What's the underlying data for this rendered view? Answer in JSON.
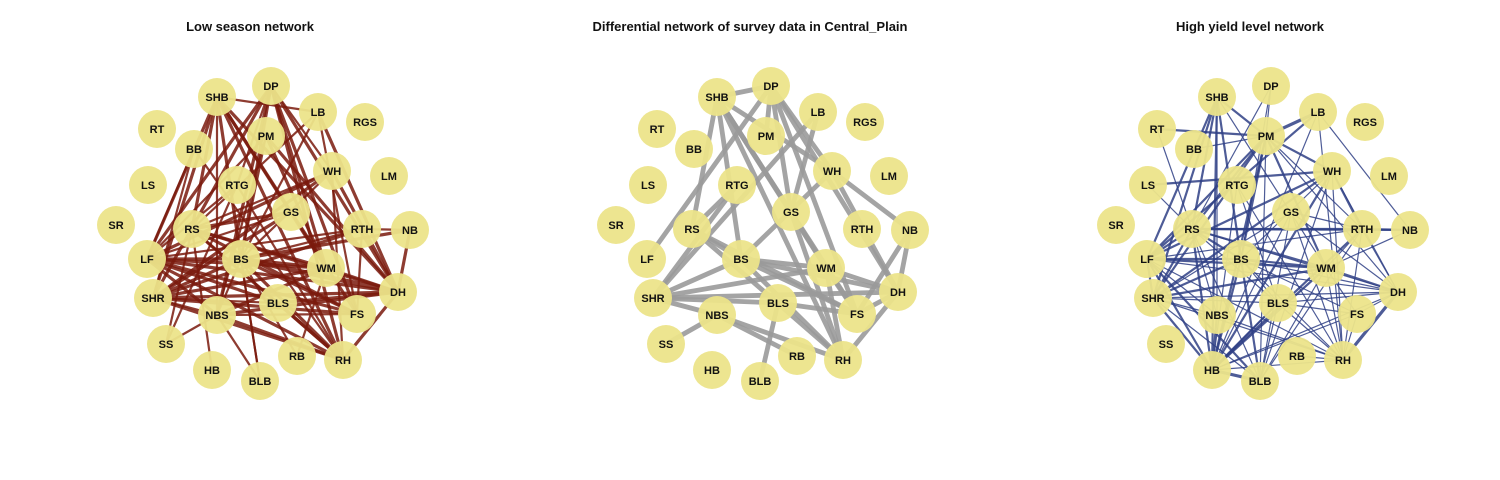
{
  "colors": {
    "node_fill": "#ece48a",
    "low_season_edge": "#7a1a0d",
    "differential_edge": "#9a9a9a",
    "high_yield_edge": "#2f3f85"
  },
  "nodes": [
    "SHB",
    "DP",
    "LB",
    "RGS",
    "RT",
    "PM",
    "BB",
    "WH",
    "LM",
    "LS",
    "RTG",
    "GS",
    "SR",
    "RS",
    "RTH",
    "NB",
    "LF",
    "BS",
    "WM",
    "DH",
    "SHR",
    "BLS",
    "FS",
    "NBS",
    "SS",
    "RB",
    "RH",
    "HB",
    "BLB"
  ],
  "panels": [
    {
      "title": "Low season network",
      "edge_color": "#7a1a0d",
      "edges": [
        [
          "SHB",
          "RS",
          3
        ],
        [
          "SHB",
          "BS",
          3
        ],
        [
          "SHB",
          "LF",
          3
        ],
        [
          "SHB",
          "SHR",
          3
        ],
        [
          "SHB",
          "WM",
          3
        ],
        [
          "SHB",
          "FS",
          3
        ],
        [
          "SHB",
          "RH",
          3
        ],
        [
          "SHB",
          "DH",
          3
        ],
        [
          "SHB",
          "NBS",
          2
        ],
        [
          "SHB",
          "LB",
          2
        ],
        [
          "DP",
          "LF",
          3
        ],
        [
          "DP",
          "BS",
          3
        ],
        [
          "DP",
          "WM",
          3
        ],
        [
          "DP",
          "RH",
          3
        ],
        [
          "DP",
          "DH",
          3
        ],
        [
          "DP",
          "FS",
          3
        ],
        [
          "DP",
          "NBS",
          3
        ],
        [
          "DP",
          "SHR",
          3
        ],
        [
          "DP",
          "WH",
          2
        ],
        [
          "DP",
          "RTG",
          2
        ],
        [
          "LB",
          "BS",
          2
        ],
        [
          "LB",
          "DH",
          3
        ],
        [
          "LB",
          "RS",
          2
        ],
        [
          "LB",
          "FS",
          2
        ],
        [
          "PM",
          "LF",
          2
        ],
        [
          "PM",
          "WM",
          3
        ],
        [
          "PM",
          "DH",
          3
        ],
        [
          "PM",
          "NBS",
          2
        ],
        [
          "PM",
          "BS",
          2
        ],
        [
          "BB",
          "SHR",
          2
        ],
        [
          "BB",
          "LF",
          2
        ],
        [
          "BB",
          "RH",
          2
        ],
        [
          "WH",
          "SHR",
          3
        ],
        [
          "WH",
          "LF",
          3
        ],
        [
          "WH",
          "RH",
          2
        ],
        [
          "WH",
          "BS",
          2
        ],
        [
          "WH",
          "RS",
          2
        ],
        [
          "WH",
          "DH",
          3
        ],
        [
          "RTG",
          "LF",
          2
        ],
        [
          "RTG",
          "SS",
          2
        ],
        [
          "RTG",
          "RH",
          2
        ],
        [
          "GS",
          "SHR",
          3
        ],
        [
          "GS",
          "LF",
          2
        ],
        [
          "GS",
          "RS",
          3
        ],
        [
          "RS",
          "DH",
          3
        ],
        [
          "RS",
          "RH",
          3
        ],
        [
          "RS",
          "FS",
          3
        ],
        [
          "RS",
          "SS",
          2
        ],
        [
          "RS",
          "HB",
          2
        ],
        [
          "RS",
          "WM",
          3
        ],
        [
          "RS",
          "BLS",
          2
        ],
        [
          "RTH",
          "SHR",
          3
        ],
        [
          "RTH",
          "LF",
          2
        ],
        [
          "RTH",
          "BS",
          2
        ],
        [
          "RTH",
          "FS",
          2
        ],
        [
          "NB",
          "DH",
          3
        ],
        [
          "NB",
          "BS",
          3
        ],
        [
          "NB",
          "RTH",
          2
        ],
        [
          "LF",
          "DH",
          3
        ],
        [
          "LF",
          "FS",
          3
        ],
        [
          "LF",
          "RH",
          3
        ],
        [
          "LF",
          "WM",
          3
        ],
        [
          "LF",
          "BS",
          3
        ],
        [
          "LF",
          "BLS",
          3
        ],
        [
          "LF",
          "NBS",
          3
        ],
        [
          "BS",
          "DH",
          4
        ],
        [
          "BS",
          "FS",
          3
        ],
        [
          "BS",
          "RH",
          3
        ],
        [
          "BS",
          "WM",
          3
        ],
        [
          "BS",
          "SHR",
          3
        ],
        [
          "BS",
          "NBS",
          2
        ],
        [
          "BS",
          "BLB",
          2
        ],
        [
          "WM",
          "DH",
          3
        ],
        [
          "WM",
          "SHR",
          3
        ],
        [
          "WM",
          "NBS",
          3
        ],
        [
          "WM",
          "RB",
          2
        ],
        [
          "DH",
          "SHR",
          3
        ],
        [
          "DH",
          "RH",
          3
        ],
        [
          "DH",
          "NBS",
          3
        ],
        [
          "DH",
          "BLS",
          3
        ],
        [
          "SHR",
          "FS",
          3
        ],
        [
          "SHR",
          "RH",
          3
        ],
        [
          "SHR",
          "NBS",
          2
        ],
        [
          "BLS",
          "RH",
          3
        ],
        [
          "BLS",
          "SHR",
          2
        ],
        [
          "FS",
          "NBS",
          2
        ],
        [
          "NBS",
          "RH",
          3
        ],
        [
          "NBS",
          "BLB",
          2
        ],
        [
          "NBS",
          "SS",
          2
        ],
        [
          "RB",
          "BS",
          2
        ],
        [
          "BLB",
          "BS",
          2
        ]
      ]
    },
    {
      "title": "Differential network of survey data in Central_Plain",
      "edge_color": "#9a9a9a",
      "edges": [
        [
          "SHB",
          "DP",
          4
        ],
        [
          "SHB",
          "BS",
          4
        ],
        [
          "SHB",
          "RS",
          4
        ],
        [
          "SHB",
          "WM",
          4
        ],
        [
          "SHB",
          "GS",
          4
        ],
        [
          "SHB",
          "FS",
          4
        ],
        [
          "SHB",
          "RH",
          4
        ],
        [
          "SHB",
          "WH",
          4
        ],
        [
          "DP",
          "LF",
          4
        ],
        [
          "DP",
          "GS",
          4
        ],
        [
          "DP",
          "WH",
          4
        ],
        [
          "DP",
          "DH",
          4
        ],
        [
          "DP",
          "FS",
          4
        ],
        [
          "DP",
          "PM",
          4
        ],
        [
          "LB",
          "SHR",
          4
        ],
        [
          "LB",
          "GS",
          4
        ],
        [
          "RTG",
          "SHR",
          4
        ],
        [
          "RTG",
          "RS",
          4
        ],
        [
          "RS",
          "RH",
          4
        ],
        [
          "RS",
          "FS",
          4
        ],
        [
          "RS",
          "BS",
          4
        ],
        [
          "GS",
          "WM",
          4
        ],
        [
          "GS",
          "RH",
          4
        ],
        [
          "WH",
          "NB",
          4
        ],
        [
          "WH",
          "DH",
          4
        ],
        [
          "WH",
          "BS",
          4
        ],
        [
          "NB",
          "DH",
          4
        ],
        [
          "NB",
          "FS",
          4
        ],
        [
          "BS",
          "SHR",
          4
        ],
        [
          "BS",
          "DH",
          4
        ],
        [
          "BS",
          "RH",
          4
        ],
        [
          "BS",
          "WM",
          4
        ],
        [
          "BS",
          "FS",
          4
        ],
        [
          "SHR",
          "DH",
          4
        ],
        [
          "SHR",
          "BLS",
          4
        ],
        [
          "SHR",
          "NBS",
          4
        ],
        [
          "SHR",
          "WM",
          4
        ],
        [
          "NBS",
          "RH",
          4
        ],
        [
          "NBS",
          "RB",
          4
        ],
        [
          "NBS",
          "SS",
          4
        ],
        [
          "WM",
          "FS",
          4
        ],
        [
          "WM",
          "RH",
          4
        ],
        [
          "WM",
          "DH",
          4
        ],
        [
          "BLS",
          "FS",
          4
        ],
        [
          "BLS",
          "BLB",
          4
        ],
        [
          "FS",
          "DH",
          4
        ],
        [
          "RH",
          "DH",
          4
        ]
      ]
    },
    {
      "title": "High yield level network",
      "edge_color": "#2f3f85",
      "edges": [
        [
          "RT",
          "PM",
          2
        ],
        [
          "RT",
          "RS",
          1
        ],
        [
          "BB",
          "PM",
          1
        ],
        [
          "LS",
          "WH",
          2
        ],
        [
          "LS",
          "RS",
          1
        ],
        [
          "SHB",
          "RS",
          2
        ],
        [
          "SHB",
          "LF",
          2
        ],
        [
          "SHB",
          "HB",
          2
        ],
        [
          "SHB",
          "BS",
          2
        ],
        [
          "SHB",
          "SHR",
          2
        ],
        [
          "SHB",
          "PM",
          2
        ],
        [
          "SHB",
          "WM",
          1
        ],
        [
          "SHB",
          "NBS",
          1
        ],
        [
          "DP",
          "PM",
          1
        ],
        [
          "DP",
          "RS",
          1
        ],
        [
          "DP",
          "BS",
          1
        ],
        [
          "PM",
          "LB",
          3
        ],
        [
          "PM",
          "RS",
          2
        ],
        [
          "PM",
          "WH",
          2
        ],
        [
          "PM",
          "BS",
          2
        ],
        [
          "PM",
          "HB",
          2
        ],
        [
          "PM",
          "WM",
          2
        ],
        [
          "PM",
          "RTH",
          1
        ],
        [
          "PM",
          "LF",
          2
        ],
        [
          "PM",
          "SHR",
          2
        ],
        [
          "PM",
          "DH",
          1
        ],
        [
          "PM",
          "BLB",
          1
        ],
        [
          "LB",
          "LF",
          2
        ],
        [
          "LB",
          "HB",
          1
        ],
        [
          "LB",
          "RH",
          1
        ],
        [
          "LB",
          "NB",
          1
        ],
        [
          "WH",
          "SHR",
          2
        ],
        [
          "WH",
          "LF",
          2
        ],
        [
          "WH",
          "HB",
          2
        ],
        [
          "WH",
          "RTH",
          2
        ],
        [
          "WH",
          "RH",
          1
        ],
        [
          "WH",
          "BLB",
          1
        ],
        [
          "WH",
          "DH",
          1
        ],
        [
          "WH",
          "BS",
          1
        ],
        [
          "RTG",
          "HB",
          1
        ],
        [
          "RTG",
          "BLS",
          1
        ],
        [
          "RTG",
          "RH",
          1
        ],
        [
          "GS",
          "RTH",
          1
        ],
        [
          "GS",
          "HB",
          1
        ],
        [
          "GS",
          "BLB",
          1
        ],
        [
          "GS",
          "SHR",
          1
        ],
        [
          "GS",
          "RH",
          1
        ],
        [
          "GS",
          "DH",
          1
        ],
        [
          "RS",
          "LF",
          2
        ],
        [
          "RS",
          "RTH",
          2
        ],
        [
          "RS",
          "BS",
          2
        ],
        [
          "RS",
          "WM",
          2
        ],
        [
          "RS",
          "SHR",
          2
        ],
        [
          "RS",
          "HB",
          2
        ],
        [
          "RS",
          "NB",
          2
        ],
        [
          "RS",
          "RH",
          1
        ],
        [
          "RS",
          "NBS",
          1
        ],
        [
          "RS",
          "BLB",
          1
        ],
        [
          "RS",
          "DH",
          1
        ],
        [
          "RTH",
          "NB",
          2
        ],
        [
          "RTH",
          "HB",
          2
        ],
        [
          "RTH",
          "WM",
          1
        ],
        [
          "RTH",
          "LF",
          1
        ],
        [
          "RTH",
          "BLB",
          1
        ],
        [
          "RTH",
          "RH",
          1
        ],
        [
          "RTH",
          "DH",
          1
        ],
        [
          "LF",
          "BS",
          2
        ],
        [
          "LF",
          "WM",
          2
        ],
        [
          "LF",
          "SHR",
          2
        ],
        [
          "LF",
          "HB",
          2
        ],
        [
          "LF",
          "BLB",
          2
        ],
        [
          "LF",
          "RH",
          1
        ],
        [
          "LF",
          "NBS",
          1
        ],
        [
          "LF",
          "DH",
          1
        ],
        [
          "BS",
          "WM",
          2
        ],
        [
          "BS",
          "SHR",
          2
        ],
        [
          "BS",
          "HB",
          2
        ],
        [
          "BS",
          "BLS",
          1
        ],
        [
          "BS",
          "BLB",
          2
        ],
        [
          "BS",
          "RH",
          1
        ],
        [
          "BS",
          "DH",
          1
        ],
        [
          "BS",
          "FS",
          1
        ],
        [
          "WM",
          "HB",
          2
        ],
        [
          "WM",
          "SHR",
          2
        ],
        [
          "WM",
          "DH",
          2
        ],
        [
          "WM",
          "RH",
          1
        ],
        [
          "WM",
          "FS",
          1
        ],
        [
          "WM",
          "BLB",
          1
        ],
        [
          "WM",
          "NB",
          1
        ],
        [
          "SHR",
          "HB",
          2
        ],
        [
          "SHR",
          "BLS",
          1
        ],
        [
          "SHR",
          "RH",
          1
        ],
        [
          "SHR",
          "NBS",
          1
        ],
        [
          "SHR",
          "DH",
          1
        ],
        [
          "SHR",
          "BLB",
          1
        ],
        [
          "HB",
          "BLB",
          3
        ],
        [
          "HB",
          "DH",
          1
        ],
        [
          "HB",
          "RH",
          1
        ],
        [
          "HB",
          "NBS",
          2
        ],
        [
          "HB",
          "FS",
          1
        ],
        [
          "HB",
          "BLS",
          1
        ],
        [
          "DH",
          "RH",
          3
        ],
        [
          "DH",
          "BLS",
          1
        ],
        [
          "DH",
          "FS",
          1
        ],
        [
          "FS",
          "BLS",
          1
        ],
        [
          "FS",
          "RH",
          1
        ],
        [
          "BLS",
          "BLB",
          1
        ],
        [
          "RB",
          "RH",
          1
        ],
        [
          "NBS",
          "RH",
          1
        ],
        [
          "BLS",
          "HB",
          2
        ]
      ]
    }
  ]
}
